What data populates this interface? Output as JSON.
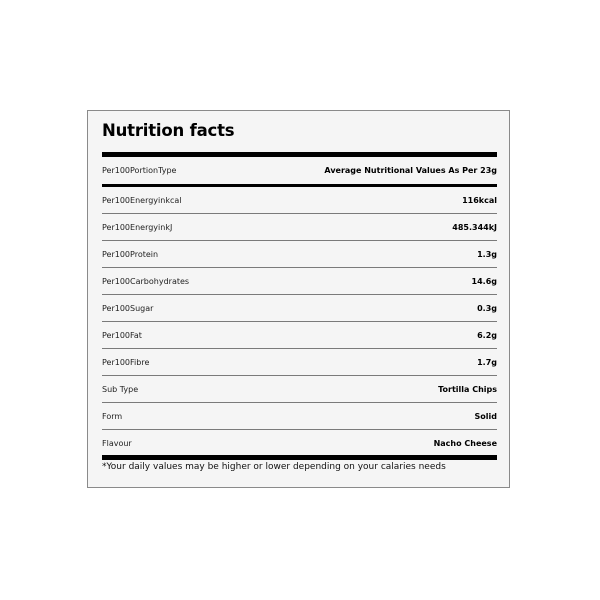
{
  "title": "Nutrition facts",
  "header_row": {
    "label": "Per100PortionType",
    "value": "Average Nutritional Values As Per 23g"
  },
  "rows": [
    {
      "label": "Per100Energyinkcal",
      "value": "116kcal"
    },
    {
      "label": "Per100EnergyinkJ",
      "value": "485.344kJ"
    },
    {
      "label": "Per100Protein",
      "value": "1.3g"
    },
    {
      "label": "Per100Carbohydrates",
      "value": "14.6g"
    },
    {
      "label": "Per100Sugar",
      "value": "0.3g"
    },
    {
      "label": "Per100Fat",
      "value": "6.2g"
    },
    {
      "label": "Per100Fibre",
      "value": "1.7g"
    },
    {
      "label": "Sub Type",
      "value": "Tortilla Chips"
    },
    {
      "label": "Form",
      "value": "Solid"
    },
    {
      "label": "Flavour",
      "value": "Nacho Cheese"
    }
  ],
  "footnote": "*Your daily values may be higher or lower depending on your calaries needs"
}
